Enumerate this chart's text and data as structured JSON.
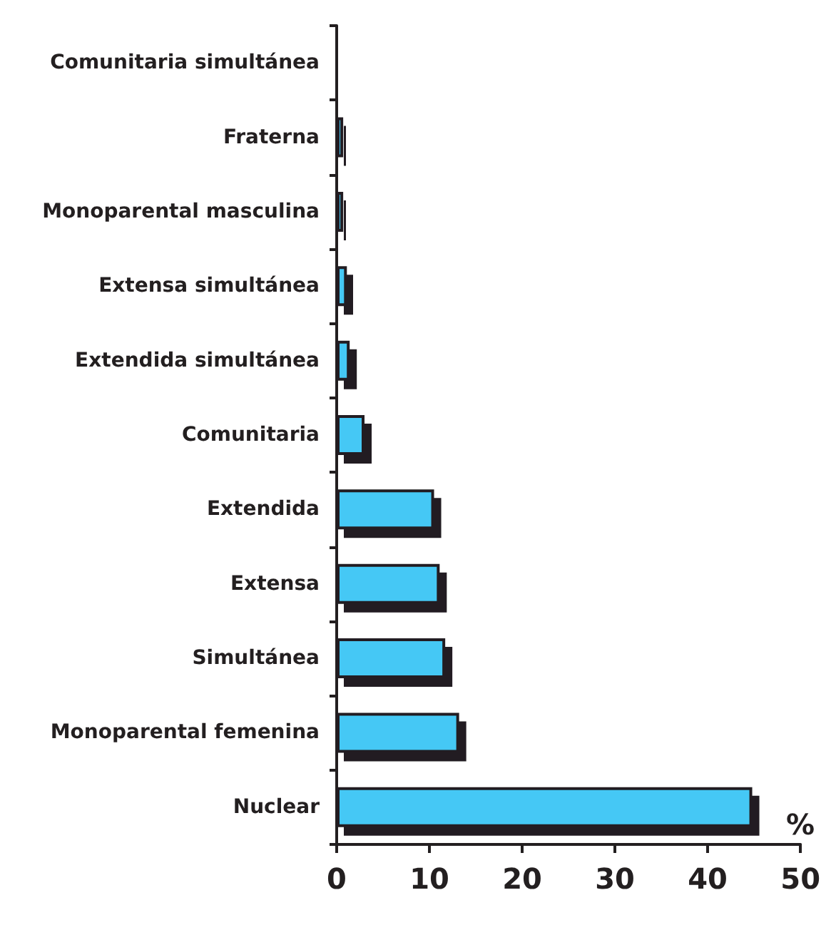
{
  "chart_data": {
    "type": "bar",
    "orientation": "horizontal",
    "xlabel": "%",
    "categories": [
      "Comunitaria simultánea",
      "Fraterna",
      "Monoparental masculina",
      "Extensa simultánea",
      "Extendida simultánea",
      "Comunitaria",
      "Extendida",
      "Extensa",
      "Simultánea",
      "Monoparental femenina",
      "Nuclear"
    ],
    "values": [
      0,
      0.7,
      0.7,
      1.1,
      1.4,
      3.0,
      10.5,
      11.1,
      11.7,
      13.2,
      44.8
    ],
    "color": "#45c8f5",
    "xlim": [
      0,
      50
    ],
    "xticks": [
      0,
      10,
      20,
      30,
      40,
      50
    ],
    "grid": false
  }
}
